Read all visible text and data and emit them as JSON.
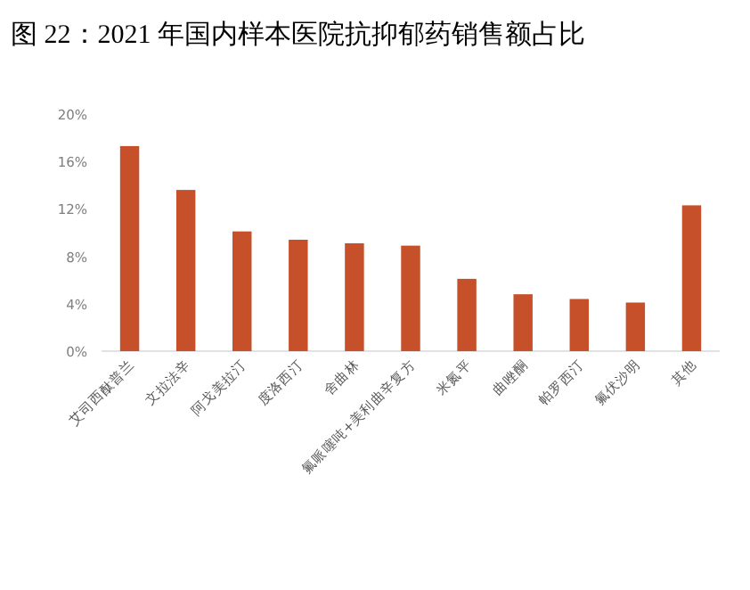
{
  "chart_data": {
    "type": "bar",
    "title": "图 22：2021 年国内样本医院抗抑郁药销售额占比",
    "categories": [
      "艾司西酞普兰",
      "文拉法辛",
      "阿戈美拉汀",
      "度洛西汀",
      "舍曲林",
      "氟哌噻吨+美利曲辛复方",
      "米氮平",
      "曲唑酮",
      "帕罗西汀",
      "氟伏沙明",
      "其他"
    ],
    "values": [
      17.3,
      13.6,
      10.1,
      9.4,
      9.1,
      8.9,
      6.1,
      4.8,
      4.4,
      4.1,
      12.3
    ],
    "color": "#c5502a",
    "ylim": [
      0,
      20
    ],
    "yticks": [
      {
        "value": 0,
        "label": "0%"
      },
      {
        "value": 4,
        "label": "4%"
      },
      {
        "value": 8,
        "label": "8%"
      },
      {
        "value": 12,
        "label": "12%"
      },
      {
        "value": 16,
        "label": "16%"
      },
      {
        "value": 20,
        "label": "20%"
      }
    ],
    "grid": false
  }
}
